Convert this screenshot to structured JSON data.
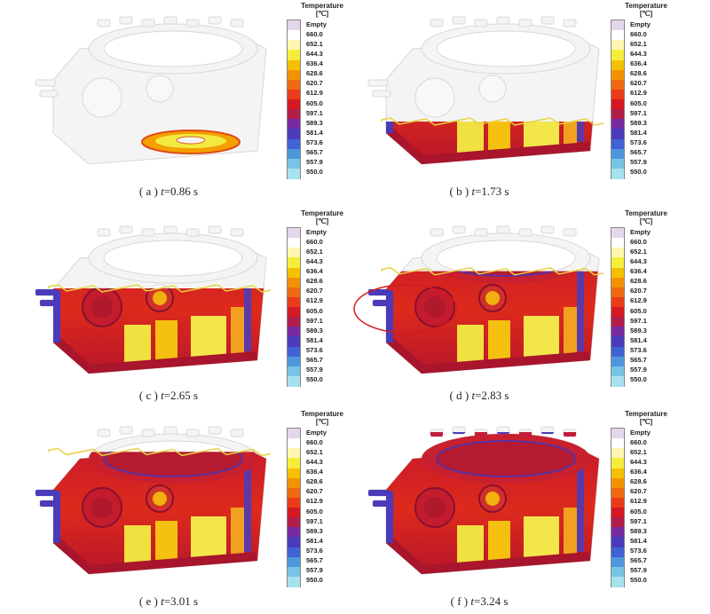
{
  "legend": {
    "title_line1": "Temperature",
    "title_line2": "[℃]",
    "empty_label": "Empty",
    "values": [
      "660.0",
      "652.1",
      "644.3",
      "636.4",
      "628.6",
      "620.7",
      "612.9",
      "605.0",
      "597.1",
      "589.3",
      "581.4",
      "573.6",
      "565.7",
      "557.9",
      "550.0"
    ],
    "colors": [
      "#e4d6ec",
      "#ffffff",
      "#fff7b0",
      "#f4ee3a",
      "#f5c000",
      "#f39200",
      "#f06a10",
      "#ea3c18",
      "#d51922",
      "#b11c48",
      "#7a2aa0",
      "#4a3bbb",
      "#3f63d3",
      "#4c97dc",
      "#78c4e4",
      "#a7e2ec"
    ]
  },
  "panels": [
    {
      "letter": "a",
      "variable": "t",
      "value": "=0.86 s",
      "fill": 0.02
    },
    {
      "letter": "b",
      "variable": "t",
      "value": "=1.73 s",
      "fill": 0.3
    },
    {
      "letter": "c",
      "variable": "t",
      "value": "=2.65 s",
      "fill": 0.6
    },
    {
      "letter": "d",
      "variable": "t",
      "value": "=2.83 s",
      "fill": 0.72
    },
    {
      "letter": "e",
      "variable": "t",
      "value": "=3.01 s",
      "fill": 0.86
    },
    {
      "letter": "f",
      "variable": "t",
      "value": "=3.24 s",
      "fill": 1.0
    }
  ]
}
